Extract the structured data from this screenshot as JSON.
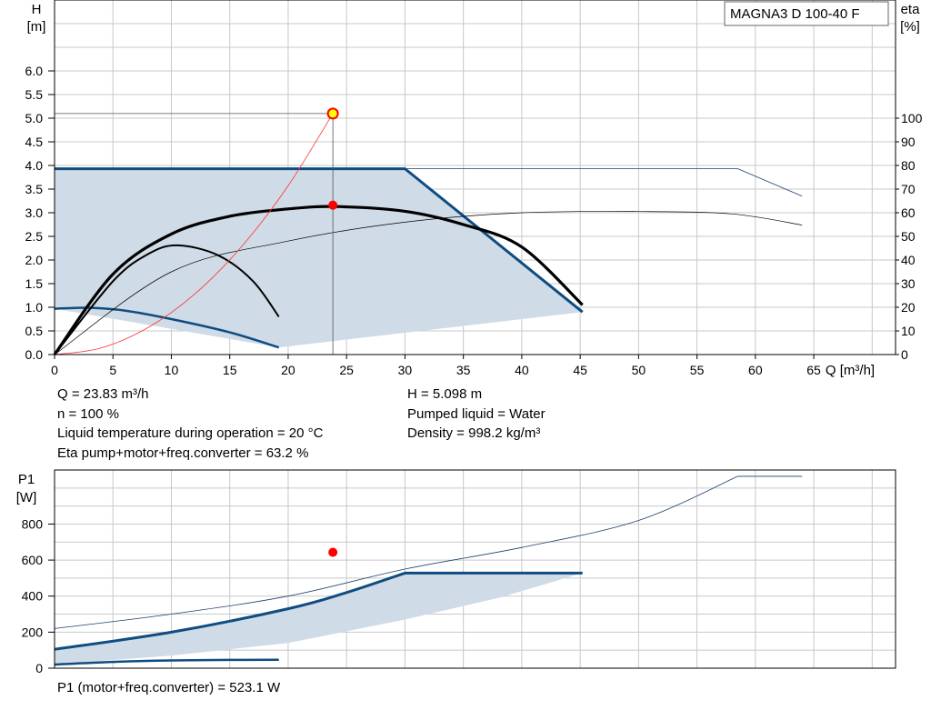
{
  "chart_data": [
    {
      "type": "line",
      "title": "MAGNA3 D 100-40 F",
      "xlabel": "Q [m³/h]",
      "ylabel_lines": [
        "H",
        "[m]"
      ],
      "y2label_lines": [
        "eta",
        "[%]"
      ],
      "xlim": [
        0,
        72
      ],
      "ylim": [
        0,
        7.5
      ],
      "y2lim": [
        0,
        150
      ],
      "x_ticks": [
        0,
        5,
        10,
        15,
        20,
        25,
        30,
        35,
        40,
        45,
        50,
        55,
        60,
        65
      ],
      "x_tick_labels": [
        "0",
        "5",
        "10",
        "15",
        "20",
        "25",
        "30",
        "35",
        "40",
        "45",
        "50",
        "55",
        "60",
        "65"
      ],
      "y_ticks": [
        0,
        0.5,
        1,
        1.5,
        2,
        2.5,
        3,
        3.5,
        4,
        4.5,
        5,
        5.5,
        6
      ],
      "y_tick_labels": [
        "0.0",
        "0.5",
        "1.0",
        "1.5",
        "2.0",
        "2.5",
        "3.0",
        "3.5",
        "4.0",
        "4.5",
        "5.0",
        "5.5",
        "6.0"
      ],
      "y2_ticks": [
        0,
        10,
        20,
        30,
        40,
        50,
        60,
        70,
        80,
        90,
        100
      ],
      "y2_tick_labels": [
        "0",
        "10",
        "20",
        "30",
        "40",
        "50",
        "60",
        "70",
        "80",
        "90",
        "100"
      ],
      "grid": true,
      "region": [
        [
          0,
          3.93
        ],
        [
          30,
          3.93
        ],
        [
          45.2,
          0.9
        ],
        [
          19.2,
          0.15
        ],
        [
          0,
          0.97
        ]
      ],
      "series": [
        {
          "role": "max-curve",
          "axis": "y",
          "x": [
            0,
            30,
            45.2
          ],
          "y": [
            3.93,
            3.93,
            0.9
          ],
          "color": "#0f4c81",
          "width": 3
        },
        {
          "role": "min-curve",
          "axis": "y",
          "x": [
            0,
            3,
            6,
            10,
            15,
            19.2
          ],
          "y": [
            0.97,
            0.99,
            0.93,
            0.75,
            0.47,
            0.15
          ],
          "color": "#0f4c81",
          "width": 2.5
        },
        {
          "role": "max-extension",
          "axis": "y",
          "x": [
            30,
            58.5,
            64
          ],
          "y": [
            3.93,
            3.93,
            3.35
          ],
          "color": "#1f3f6e",
          "width": 0.8
        },
        {
          "role": "eta-curve",
          "axis": "y2",
          "x": [
            0,
            5,
            10,
            15,
            20,
            24,
            30,
            35,
            40,
            45.2
          ],
          "y": [
            0,
            34,
            51,
            58.5,
            61.6,
            62.6,
            60.6,
            55,
            45.5,
            21
          ],
          "color": "#000000",
          "width": 3.2
        },
        {
          "role": "eta-curve-min",
          "axis": "y2",
          "x": [
            0,
            5,
            8,
            10.5,
            14,
            17,
            19.2
          ],
          "y": [
            0,
            31,
            42.5,
            46.2,
            42,
            31,
            16
          ],
          "color": "#000000",
          "width": 2
        },
        {
          "role": "eta-extension",
          "axis": "y2",
          "x": [
            0,
            10,
            20,
            30,
            40,
            50,
            58,
            64
          ],
          "y": [
            0,
            35,
            48,
            56,
            60,
            60.5,
            59.5,
            54.8
          ],
          "color": "#000000",
          "width": 0.7
        },
        {
          "role": "system-curve",
          "axis": "y",
          "x": [
            0,
            4,
            8,
            12,
            16,
            20,
            23.83
          ],
          "y": [
            0,
            0.14,
            0.57,
            1.28,
            2.28,
            3.57,
            5.098
          ],
          "color": "#ff3333",
          "width": 0.8
        }
      ],
      "operating_point": {
        "x": 23.83,
        "y": 5.098
      },
      "eta_point": {
        "x": 23.83,
        "y": 63.2
      }
    },
    {
      "type": "line",
      "xlabel": "",
      "ylabel_lines": [
        "P1",
        "[W]"
      ],
      "xlim": [
        0,
        72
      ],
      "ylim": [
        0,
        1100
      ],
      "y_ticks": [
        0,
        200,
        400,
        600,
        800
      ],
      "y_tick_labels": [
        "0",
        "200",
        "400",
        "600",
        "800"
      ],
      "x_ticks": [
        0,
        5,
        10,
        15,
        20,
        25,
        30,
        35,
        40,
        45,
        50,
        55,
        60,
        65
      ],
      "grid": true,
      "region": [
        [
          0,
          105
        ],
        [
          10,
          200
        ],
        [
          20,
          330
        ],
        [
          30,
          528
        ],
        [
          45.2,
          528
        ],
        [
          30,
          270
        ],
        [
          20,
          130
        ],
        [
          10,
          60
        ],
        [
          0,
          20
        ]
      ],
      "series": [
        {
          "role": "max-power",
          "x": [
            0,
            10,
            20,
            25,
            30,
            45.2
          ],
          "y": [
            105,
            200,
            330,
            420,
            528,
            528
          ],
          "color": "#0f4c81",
          "width": 3
        },
        {
          "role": "min-power",
          "x": [
            0,
            5,
            10,
            15,
            19.2
          ],
          "y": [
            20,
            35,
            43,
            46,
            47
          ],
          "color": "#0f4c81",
          "width": 2.5
        },
        {
          "role": "max-power-extension",
          "x": [
            0,
            10,
            20,
            30,
            40,
            50,
            58.5,
            64
          ],
          "y": [
            220,
            300,
            400,
            550,
            670,
            820,
            1065,
            1065
          ],
          "color": "#1f3f6e",
          "width": 0.8
        }
      ],
      "operating_point": {
        "x": 23.83,
        "y": 523.1
      }
    }
  ],
  "info": {
    "q": "Q = 23.83 m³/h",
    "h": "H = 5.098 m",
    "n": "n = 100 %",
    "liquid": "Pumped liquid = Water",
    "temp": "Liquid temperature during operation = 20 °C",
    "density": "Density = 998.2 kg/m³",
    "eta": "Eta pump+motor+freq.converter = 63.2 %",
    "p1": "P1 (motor+freq.converter) = 523.1 W"
  },
  "colors": {
    "region_fill": "#cfdbe6",
    "grid": "#c8c8c8",
    "point_fill": "#ff0000",
    "operating_point_fill": "#ffff00",
    "operating_point_stroke": "#ff0000"
  }
}
